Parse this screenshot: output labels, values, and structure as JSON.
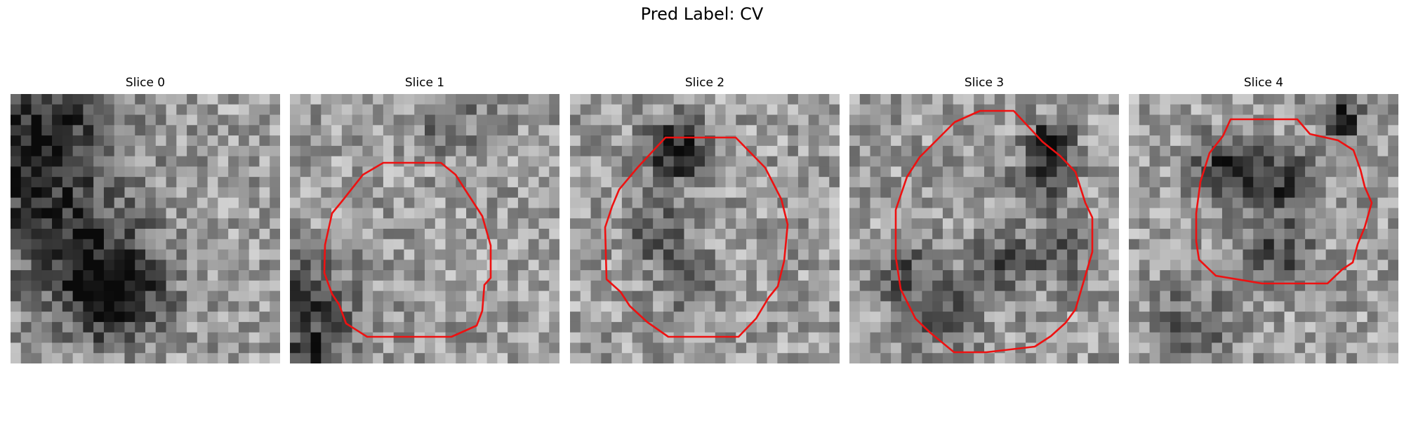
{
  "figure": {
    "title": "Pred Label: CV"
  },
  "panels": [
    {
      "title": "Slice 0",
      "image_label": "grayscale-patch",
      "contour": false,
      "dark_blobs": [
        [
          1,
          8,
          9,
          0.35
        ],
        [
          10,
          19,
          4,
          0.4
        ],
        [
          8,
          17,
          6,
          0.35
        ],
        [
          3,
          3,
          5,
          0.3
        ]
      ]
    },
    {
      "title": "Slice 1",
      "image_label": "grayscale-patch",
      "contour": true,
      "dark_blobs": [
        [
          1,
          20,
          5,
          0.35
        ],
        [
          2,
          26,
          3,
          0.4
        ],
        [
          15,
          2,
          3,
          0.25
        ]
      ]
    },
    {
      "title": "Slice 2",
      "image_label": "grayscale-patch",
      "contour": true,
      "dark_blobs": [
        [
          10,
          5,
          3,
          0.55
        ],
        [
          8,
          13,
          3,
          0.3
        ],
        [
          11,
          18,
          3,
          0.25
        ]
      ]
    },
    {
      "title": "Slice 3",
      "image_label": "grayscale-patch",
      "contour": true,
      "dark_blobs": [
        [
          18,
          8,
          3,
          0.3
        ],
        [
          14,
          16,
          3,
          0.3
        ],
        [
          5,
          17,
          3,
          0.3
        ],
        [
          9,
          21,
          3,
          0.35
        ],
        [
          19,
          4,
          2,
          0.55
        ],
        [
          20,
          15,
          3,
          0.25
        ]
      ]
    },
    {
      "title": "Slice 4",
      "image_label": "grayscale-patch",
      "contour": true,
      "dark_blobs": [
        [
          9,
          7,
          3,
          0.5
        ],
        [
          15,
          8,
          3,
          0.45
        ],
        [
          14,
          15,
          3,
          0.35
        ],
        [
          20,
          2,
          2,
          0.5
        ],
        [
          6,
          22,
          4,
          0.25
        ]
      ]
    }
  ],
  "colors": {
    "contour": "#ee1111",
    "background": "#ffffff"
  }
}
